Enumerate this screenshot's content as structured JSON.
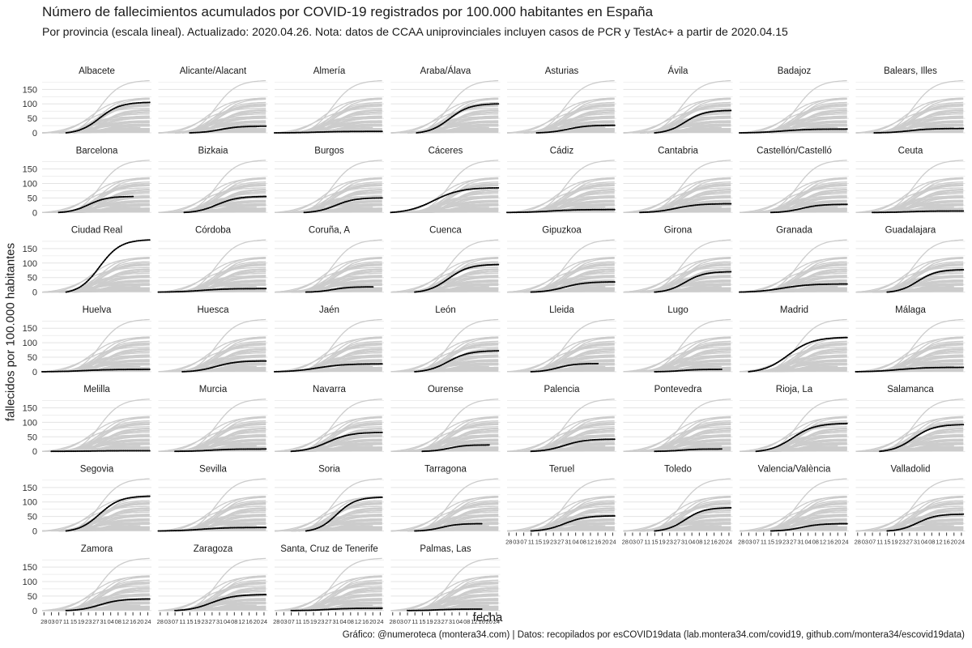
{
  "chart_data": {
    "type": "line",
    "title": "Número de fallecimientos acumulados por COVID-19 registrados por 100.000 habitantes en España",
    "subtitle": "Por provincia  (escala lineal). Actualizado: 2020.04.26. Nota: datos de CCAA uniprovinciales incluyen casos de PCR y TestAc+ a partir de 2020.04.15",
    "xlabel": "fecha",
    "ylabel": "fallecidos por 100.000 habitantes",
    "caption": "Gráfico: @numeroteca (montera34.com) | Datos: recopilados por esCOVID19data (lab.montera34.com/covid19, github.com/montera34/escovid19data)",
    "ylim": [
      0,
      190
    ],
    "y_ticks": [
      "0",
      "50",
      "100",
      "150"
    ],
    "x_ticks": [
      "28",
      "03",
      "07",
      "11",
      "15",
      "19",
      "23",
      "27",
      "31",
      "04",
      "08",
      "12",
      "16",
      "20",
      "24"
    ],
    "grid": true,
    "colors": {
      "highlight": "#000000",
      "background_lines": "#cccccc",
      "grid": "#e3e3e3"
    },
    "series": [
      {
        "name": "Albacete",
        "start": "2020-03-11",
        "final": 105
      },
      {
        "name": "Alicante/Alacant",
        "start": "2020-03-15",
        "final": 23
      },
      {
        "name": "Almería",
        "start": "2020-02-27",
        "final": 5
      },
      {
        "name": "Araba/Álava",
        "start": "2020-03-12",
        "final": 100
      },
      {
        "name": "Asturias",
        "start": "2020-03-14",
        "final": 26
      },
      {
        "name": "Ávila",
        "start": "2020-03-15",
        "final": 77
      },
      {
        "name": "Badajoz",
        "start": "2020-02-27",
        "final": 13
      },
      {
        "name": "Balears, Illes",
        "start": "2020-03-08",
        "final": 15
      },
      {
        "name": "Barcelona",
        "start": "2020-03-07",
        "final": 55,
        "end": "2020-04-16"
      },
      {
        "name": "Bizkaia",
        "start": "2020-03-12",
        "final": 55
      },
      {
        "name": "Burgos",
        "start": "2020-03-14",
        "final": 50
      },
      {
        "name": "Cáceres",
        "start": "2020-02-27",
        "final": 85
      },
      {
        "name": "Cádiz",
        "start": "2020-02-27",
        "final": 10
      },
      {
        "name": "Cantabria",
        "start": "2020-03-07",
        "final": 30
      },
      {
        "name": "Castellón/Castelló",
        "start": "2020-03-15",
        "final": 28
      },
      {
        "name": "Ceuta",
        "start": "2020-03-07",
        "final": 5
      },
      {
        "name": "Ciudad Real",
        "start": "2020-03-11",
        "final": 180
      },
      {
        "name": "Córdoba",
        "start": "2020-02-27",
        "final": 12
      },
      {
        "name": "Coruña, A",
        "start": "2020-03-15",
        "final": 18,
        "end": "2020-04-20"
      },
      {
        "name": "Cuenca",
        "start": "2020-03-11",
        "final": 95
      },
      {
        "name": "Gipuzkoa",
        "start": "2020-03-11",
        "final": 35
      },
      {
        "name": "Girona",
        "start": "2020-03-15",
        "final": 70
      },
      {
        "name": "Granada",
        "start": "2020-02-27",
        "final": 28
      },
      {
        "name": "Guadalajara",
        "start": "2020-03-15",
        "final": 77
      },
      {
        "name": "Huelva",
        "start": "2020-02-27",
        "final": 8
      },
      {
        "name": "Huesca",
        "start": "2020-03-11",
        "final": 37
      },
      {
        "name": "Jaén",
        "start": "2020-02-27",
        "final": 27
      },
      {
        "name": "León",
        "start": "2020-03-11",
        "final": 72
      },
      {
        "name": "Lleida",
        "start": "2020-03-11",
        "final": 28,
        "end": "2020-04-16"
      },
      {
        "name": "Lugo",
        "start": "2020-03-15",
        "final": 8,
        "end": "2020-04-20"
      },
      {
        "name": "Madrid",
        "start": "2020-03-03",
        "final": 118
      },
      {
        "name": "Málaga",
        "start": "2020-02-27",
        "final": 15
      },
      {
        "name": "Melilla",
        "start": "2020-03-03",
        "final": 2
      },
      {
        "name": "Murcia",
        "start": "2020-03-07",
        "final": 8
      },
      {
        "name": "Navarra",
        "start": "2020-03-07",
        "final": 65
      },
      {
        "name": "Ourense",
        "start": "2020-03-15",
        "final": 22,
        "end": "2020-04-20"
      },
      {
        "name": "Palencia",
        "start": "2020-03-11",
        "final": 42
      },
      {
        "name": "Pontevedra",
        "start": "2020-03-15",
        "final": 8,
        "end": "2020-04-20"
      },
      {
        "name": "Rioja, La",
        "start": "2020-03-07",
        "final": 96
      },
      {
        "name": "Salamanca",
        "start": "2020-03-11",
        "final": 92
      },
      {
        "name": "Segovia",
        "start": "2020-03-11",
        "final": 120
      },
      {
        "name": "Sevilla",
        "start": "2020-02-27",
        "final": 12
      },
      {
        "name": "Soria",
        "start": "2020-03-15",
        "final": 116
      },
      {
        "name": "Tarragona",
        "start": "2020-03-11",
        "final": 25,
        "end": "2020-04-16"
      },
      {
        "name": "Teruel",
        "start": "2020-03-11",
        "final": 52
      },
      {
        "name": "Toledo",
        "start": "2020-03-15",
        "final": 80
      },
      {
        "name": "Valencia/València",
        "start": "2020-03-15",
        "final": 25
      },
      {
        "name": "Valladolid",
        "start": "2020-03-15",
        "final": 58
      },
      {
        "name": "Zamora",
        "start": "2020-03-11",
        "final": 40
      },
      {
        "name": "Zaragoza",
        "start": "2020-03-07",
        "final": 55
      },
      {
        "name": "Santa, Cruz de Tenerife",
        "start": "2020-03-07",
        "final": 8
      },
      {
        "name": "Palmas, Las",
        "start": "2020-03-07",
        "final": 5,
        "end": "2020-04-16"
      }
    ]
  }
}
